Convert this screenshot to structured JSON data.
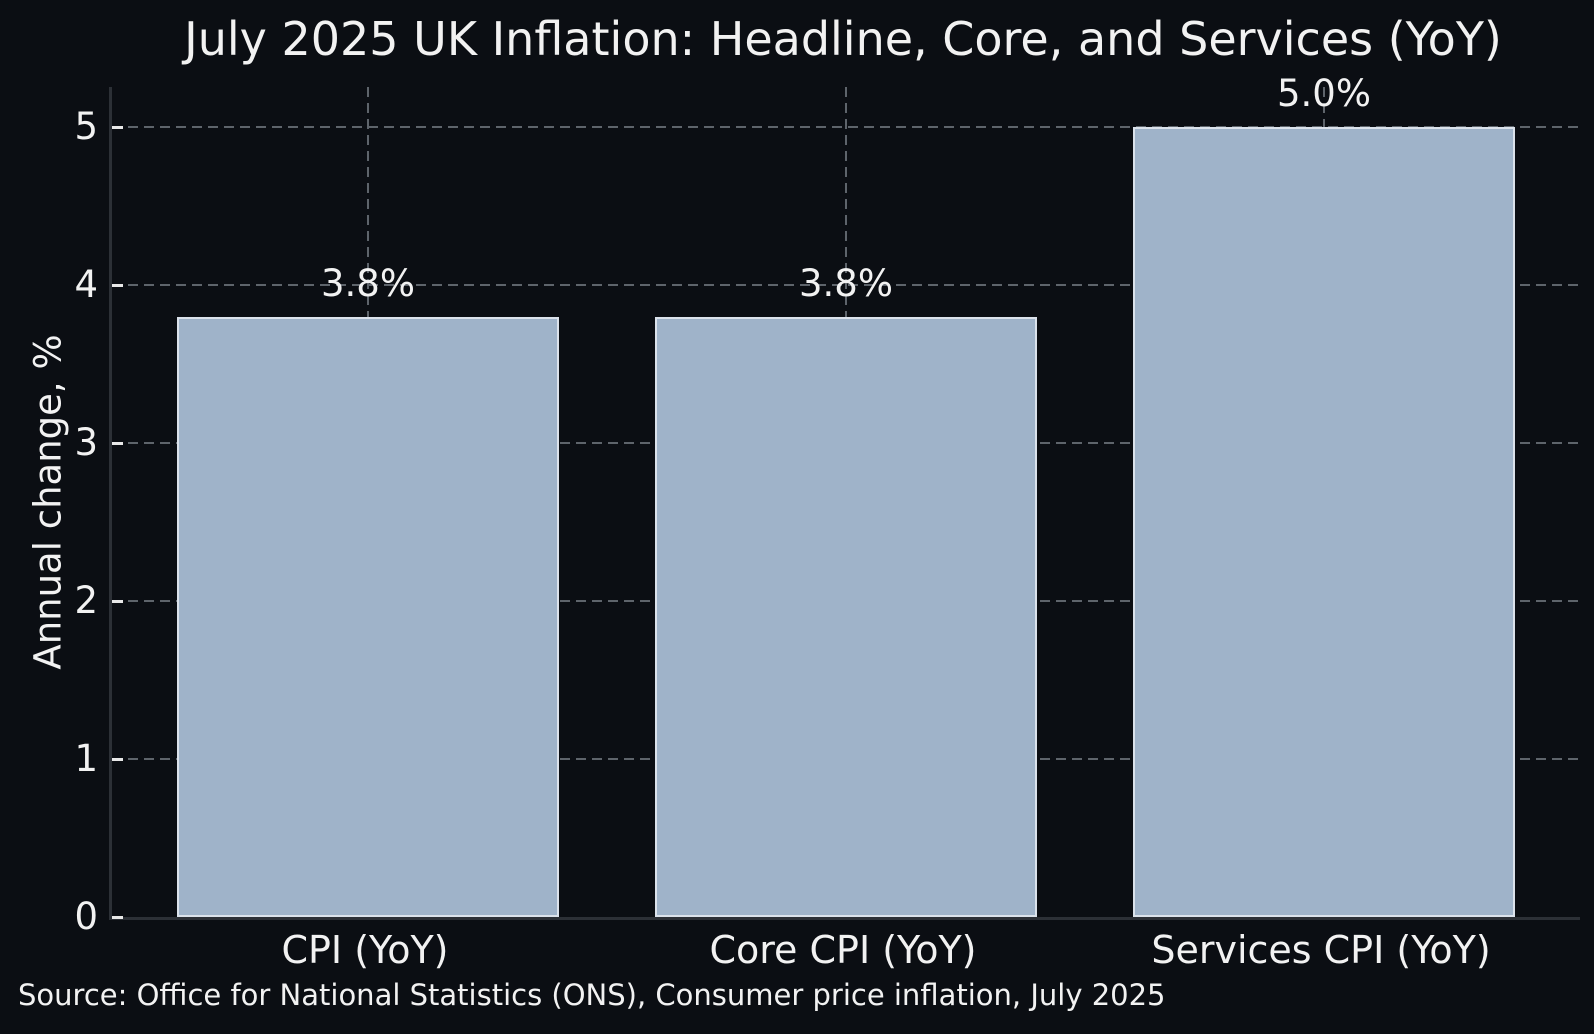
{
  "chart_data": {
    "type": "bar",
    "title": "July 2025 UK Inflation: Headline, Core, and Services (YoY)",
    "ylabel": "Annual change, %",
    "xlabel": "",
    "categories": [
      "CPI (YoY)",
      "Core CPI (YoY)",
      "Services CPI (YoY)"
    ],
    "values": [
      3.8,
      3.8,
      5.0
    ],
    "value_labels": [
      "3.8%",
      "3.8%",
      "5.0%"
    ],
    "yticks": [
      0,
      1,
      2,
      3,
      4,
      5
    ],
    "ylim": [
      0,
      5.25
    ],
    "grid": "dashed, horizontal at each y tick and vertical at each bar center",
    "legend": "none",
    "source": "Source: Office for National Statistics (ONS), Consumer price inflation, July 2025",
    "colors": {
      "background": "#0b0e13",
      "bar_fill": "#9fb3c9",
      "bar_edge": "#dbe2eb",
      "grid": "#5e646b",
      "text": "#f2f2f2",
      "spine": "#2c3036",
      "tick_mark": "#e8e8e8"
    }
  }
}
